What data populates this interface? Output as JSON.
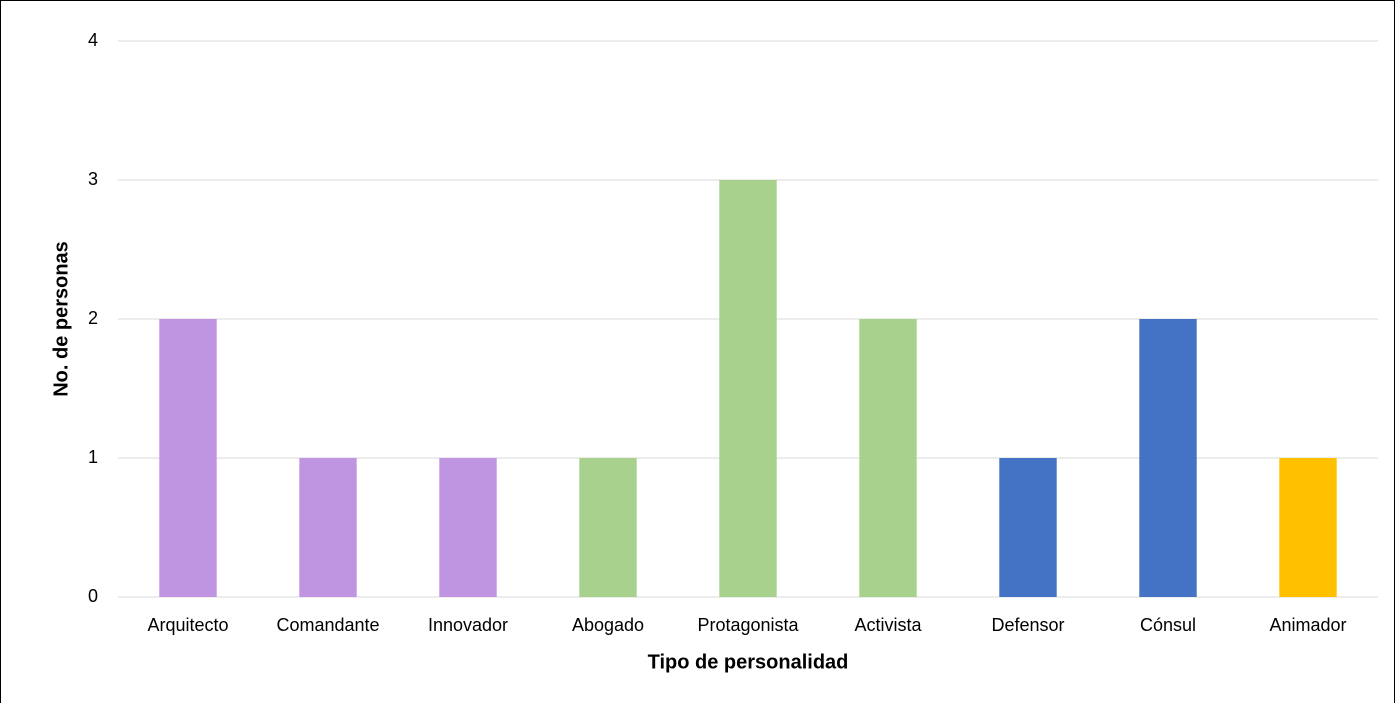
{
  "chart_data": {
    "type": "bar",
    "x_label": "Tipo de personalidad",
    "y_label": "No. de personas",
    "categories": [
      "Arquitecto",
      "Comandante",
      "Innovador",
      "Abogado",
      "Protagonista",
      "Activista",
      "Defensor",
      "Cónsul",
      "Animador"
    ],
    "values": [
      2,
      1,
      1,
      1,
      3,
      2,
      1,
      2,
      1
    ],
    "colors": [
      "#bf94e0",
      "#bf94e0",
      "#bf94e0",
      "#a9d18e",
      "#a9d18e",
      "#a9d18e",
      "#4472c4",
      "#4472c4",
      "#ffc000"
    ],
    "ylim": [
      0,
      4
    ],
    "yticks": [
      0,
      1,
      2,
      3,
      4
    ],
    "grid": true
  }
}
